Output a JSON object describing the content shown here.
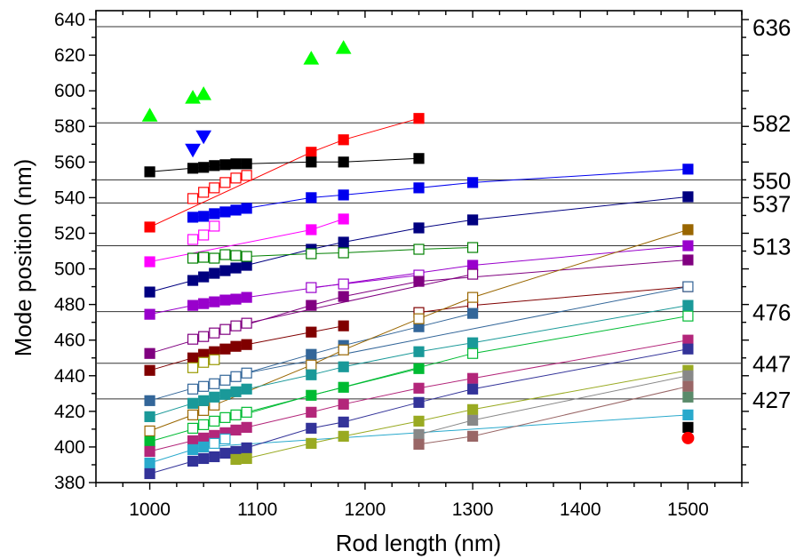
{
  "chart_data": {
    "type": "scatter",
    "title": "",
    "xlabel": "Rod length (nm)",
    "ylabel": "Mode position (nm)",
    "xlim": [
      950,
      1550
    ],
    "ylim": [
      380,
      645
    ],
    "x_ticks": [
      1000,
      1100,
      1200,
      1300,
      1400,
      1500
    ],
    "y_ticks": [
      380,
      400,
      420,
      440,
      460,
      480,
      500,
      520,
      540,
      560,
      580,
      600,
      620,
      640
    ],
    "grid": false,
    "legend": "none",
    "reference_lines": [
      {
        "y": 636,
        "label": "636"
      },
      {
        "y": 582,
        "label": "582"
      },
      {
        "y": 550,
        "label": "550"
      },
      {
        "y": 537,
        "label": "537"
      },
      {
        "y": 513,
        "label": "513"
      },
      {
        "y": 476,
        "label": "476"
      },
      {
        "y": 447,
        "label": "447"
      },
      {
        "y": 427,
        "label": "427"
      }
    ],
    "series": [
      {
        "color": "#ff0000",
        "marker": "square",
        "filled": true,
        "connected": true,
        "points": [
          [
            1000,
            523.5
          ],
          [
            1150,
            565.5
          ],
          [
            1180,
            572.5
          ],
          [
            1250,
            584.5
          ]
        ]
      },
      {
        "color": "#ff0000",
        "marker": "square",
        "filled": false,
        "connected": true,
        "points": [
          [
            1040,
            539.5
          ],
          [
            1050,
            543
          ],
          [
            1060,
            545.5
          ],
          [
            1070,
            548.5
          ],
          [
            1080,
            551
          ],
          [
            1090,
            552.5
          ]
        ]
      },
      {
        "color": "#000000",
        "marker": "square",
        "filled": true,
        "connected": true,
        "points": [
          [
            1000,
            554.5
          ],
          [
            1040,
            556.5
          ],
          [
            1050,
            557
          ],
          [
            1060,
            558
          ],
          [
            1070,
            558.5
          ],
          [
            1080,
            559
          ],
          [
            1090,
            559
          ],
          [
            1150,
            560
          ],
          [
            1180,
            560
          ],
          [
            1250,
            562
          ]
        ]
      },
      {
        "color": "#0000ee",
        "marker": "square",
        "filled": true,
        "connected": true,
        "points": [
          [
            1040,
            529
          ],
          [
            1050,
            529.5
          ],
          [
            1060,
            531
          ],
          [
            1070,
            532
          ],
          [
            1080,
            533
          ],
          [
            1090,
            534
          ],
          [
            1150,
            540
          ],
          [
            1180,
            541.5
          ],
          [
            1250,
            545.5
          ],
          [
            1300,
            548.5
          ],
          [
            1500,
            556
          ]
        ]
      },
      {
        "color": "#ff00ff",
        "marker": "square",
        "filled": true,
        "connected": true,
        "points": [
          [
            1000,
            504
          ],
          [
            1150,
            522
          ],
          [
            1180,
            528
          ]
        ]
      },
      {
        "color": "#ff00ff",
        "marker": "square",
        "filled": false,
        "connected": true,
        "points": [
          [
            1040,
            516.5
          ],
          [
            1050,
            519
          ],
          [
            1060,
            524
          ]
        ]
      },
      {
        "color": "#000080",
        "marker": "square",
        "filled": true,
        "connected": true,
        "points": [
          [
            1000,
            487
          ],
          [
            1040,
            493.5
          ],
          [
            1050,
            495.5
          ],
          [
            1060,
            497.5
          ],
          [
            1070,
            499
          ],
          [
            1080,
            500.5
          ],
          [
            1090,
            502
          ],
          [
            1150,
            511
          ],
          [
            1180,
            515
          ],
          [
            1250,
            523
          ],
          [
            1300,
            527.5
          ],
          [
            1500,
            540.5
          ]
        ]
      },
      {
        "color": "#008000",
        "marker": "square",
        "filled": false,
        "connected": true,
        "points": [
          [
            1040,
            506
          ],
          [
            1050,
            506.5
          ],
          [
            1060,
            506
          ],
          [
            1070,
            508
          ],
          [
            1080,
            507.5
          ],
          [
            1090,
            507
          ],
          [
            1150,
            508.5
          ],
          [
            1180,
            509
          ],
          [
            1250,
            511
          ],
          [
            1300,
            512
          ]
        ]
      },
      {
        "color": "#9900cc",
        "marker": "square",
        "filled": true,
        "connected": true,
        "points": [
          [
            1000,
            474.5
          ],
          [
            1040,
            479.5
          ],
          [
            1050,
            480.5
          ],
          [
            1060,
            481.5
          ],
          [
            1070,
            482.5
          ],
          [
            1080,
            483
          ],
          [
            1090,
            484
          ],
          [
            1300,
            502
          ],
          [
            1500,
            513
          ]
        ]
      },
      {
        "color": "#9900cc",
        "marker": "square",
        "filled": false,
        "connected": true,
        "points": [
          [
            1150,
            489.5
          ],
          [
            1180,
            491.5
          ],
          [
            1250,
            496.5
          ]
        ]
      },
      {
        "color": "#800080",
        "marker": "square",
        "filled": true,
        "connected": true,
        "points": [
          [
            1000,
            452.5
          ],
          [
            1150,
            479.5
          ],
          [
            1180,
            484.5
          ],
          [
            1250,
            493
          ],
          [
            1500,
            505
          ]
        ]
      },
      {
        "color": "#800080",
        "marker": "square",
        "filled": false,
        "connected": true,
        "points": [
          [
            1040,
            460.5
          ],
          [
            1050,
            462
          ],
          [
            1060,
            464
          ],
          [
            1070,
            466
          ],
          [
            1080,
            468
          ],
          [
            1090,
            469.5
          ],
          [
            1300,
            497
          ]
        ]
      },
      {
        "color": "#800000",
        "marker": "square",
        "filled": true,
        "connected": true,
        "points": [
          [
            1000,
            443
          ],
          [
            1040,
            450
          ],
          [
            1050,
            452
          ],
          [
            1060,
            453.5
          ],
          [
            1070,
            455
          ],
          [
            1080,
            456.5
          ],
          [
            1090,
            457.5
          ],
          [
            1150,
            464.5
          ],
          [
            1180,
            468
          ]
        ]
      },
      {
        "color": "#800000",
        "marker": "square",
        "filled": false,
        "connected": true,
        "points": [
          [
            1250,
            475.5
          ],
          [
            1300,
            479.5
          ],
          [
            1500,
            490
          ]
        ]
      },
      {
        "color": "#336699",
        "marker": "square",
        "filled": true,
        "connected": true,
        "points": [
          [
            1000,
            426
          ],
          [
            1150,
            452
          ],
          [
            1180,
            457
          ],
          [
            1250,
            467.5
          ],
          [
            1300,
            475
          ]
        ]
      },
      {
        "color": "#336699",
        "marker": "square",
        "filled": false,
        "connected": true,
        "points": [
          [
            1040,
            432.5
          ],
          [
            1050,
            434
          ],
          [
            1060,
            435.5
          ],
          [
            1070,
            437.5
          ],
          [
            1080,
            439.5
          ],
          [
            1090,
            441.5
          ],
          [
            1500,
            490
          ]
        ]
      },
      {
        "color": "#996600",
        "marker": "square",
        "filled": false,
        "connected": true,
        "points": [
          [
            1000,
            409
          ],
          [
            1040,
            418
          ],
          [
            1050,
            420.5
          ],
          [
            1060,
            423.5
          ],
          [
            1150,
            446
          ],
          [
            1180,
            454.5
          ],
          [
            1250,
            472
          ],
          [
            1300,
            484
          ],
          [
            1500,
            522
          ]
        ]
      },
      {
        "color": "#996600",
        "marker": "square",
        "filled": true,
        "connected": false,
        "points": [
          [
            1500,
            522
          ]
        ]
      },
      {
        "color": "#999900",
        "marker": "square",
        "filled": false,
        "connected": true,
        "points": [
          [
            1040,
            444.5
          ],
          [
            1050,
            447.5
          ],
          [
            1060,
            449
          ]
        ]
      },
      {
        "color": "#1a9999",
        "marker": "square",
        "filled": true,
        "connected": true,
        "points": [
          [
            1000,
            417
          ],
          [
            1040,
            424.5
          ],
          [
            1050,
            426
          ],
          [
            1060,
            428
          ],
          [
            1070,
            429.5
          ],
          [
            1080,
            431
          ],
          [
            1090,
            432.5
          ],
          [
            1150,
            440.5
          ],
          [
            1180,
            445
          ],
          [
            1250,
            453.5
          ],
          [
            1300,
            458.5
          ],
          [
            1500,
            479.5
          ]
        ]
      },
      {
        "color": "#00bb33",
        "marker": "square",
        "filled": true,
        "connected": true,
        "points": [
          [
            1000,
            403
          ],
          [
            1150,
            429
          ],
          [
            1180,
            433.5
          ],
          [
            1250,
            444
          ]
        ]
      },
      {
        "color": "#00bb33",
        "marker": "square",
        "filled": false,
        "connected": true,
        "points": [
          [
            1040,
            410.5
          ],
          [
            1050,
            412.5
          ],
          [
            1060,
            414.5
          ],
          [
            1070,
            416.5
          ],
          [
            1080,
            418
          ],
          [
            1090,
            419.5
          ],
          [
            1300,
            452.5
          ],
          [
            1500,
            473.5
          ]
        ]
      },
      {
        "color": "#b3267a",
        "marker": "square",
        "filled": true,
        "connected": true,
        "points": [
          [
            1000,
            397.5
          ],
          [
            1040,
            403.5
          ],
          [
            1050,
            405
          ],
          [
            1060,
            406.5
          ],
          [
            1070,
            408
          ],
          [
            1080,
            409.5
          ],
          [
            1090,
            411
          ],
          [
            1150,
            419.5
          ],
          [
            1180,
            424
          ],
          [
            1250,
            433
          ],
          [
            1300,
            438.5
          ],
          [
            1500,
            460
          ]
        ]
      },
      {
        "color": "#29a9cc",
        "marker": "square",
        "filled": true,
        "connected": true,
        "points": [
          [
            1000,
            391
          ],
          [
            1040,
            398.5
          ],
          [
            1050,
            400
          ],
          [
            1500,
            418
          ]
        ]
      },
      {
        "color": "#29a9cc",
        "marker": "square",
        "filled": false,
        "connected": true,
        "points": [
          [
            1060,
            402
          ],
          [
            1070,
            404.5
          ]
        ]
      },
      {
        "color": "#333399",
        "marker": "square",
        "filled": true,
        "connected": true,
        "points": [
          [
            1000,
            385
          ],
          [
            1040,
            392
          ],
          [
            1050,
            393.5
          ],
          [
            1060,
            394.5
          ],
          [
            1070,
            396.5
          ],
          [
            1080,
            397.5
          ],
          [
            1090,
            399.5
          ],
          [
            1150,
            410.5
          ],
          [
            1180,
            414
          ],
          [
            1250,
            425
          ],
          [
            1300,
            432.5
          ],
          [
            1500,
            455
          ]
        ]
      },
      {
        "color": "#99aa22",
        "marker": "square",
        "filled": true,
        "connected": true,
        "points": [
          [
            1080,
            393
          ],
          [
            1090,
            393.5
          ],
          [
            1150,
            402
          ],
          [
            1180,
            406
          ],
          [
            1250,
            414.5
          ],
          [
            1300,
            421
          ],
          [
            1500,
            443
          ]
        ]
      },
      {
        "color": "#888888",
        "marker": "square",
        "filled": true,
        "connected": true,
        "points": [
          [
            1250,
            407
          ],
          [
            1300,
            415
          ],
          [
            1500,
            440
          ]
        ]
      },
      {
        "color": "#996666",
        "marker": "square",
        "filled": true,
        "connected": true,
        "points": [
          [
            1250,
            401.5
          ],
          [
            1300,
            406
          ],
          [
            1500,
            434
          ]
        ]
      },
      {
        "color": "#5a8a6a",
        "marker": "square",
        "filled": true,
        "connected": false,
        "points": [
          [
            1500,
            428
          ]
        ]
      },
      {
        "color": "#000000",
        "marker": "square",
        "filled": true,
        "connected": false,
        "points": [
          [
            1500,
            411
          ]
        ]
      },
      {
        "color": "#ff0000",
        "marker": "circle",
        "filled": true,
        "connected": false,
        "points": [
          [
            1500,
            405
          ]
        ]
      },
      {
        "color": "#00ff00",
        "marker": "triangle-up",
        "filled": true,
        "connected": false,
        "points": [
          [
            1000,
            586
          ],
          [
            1040,
            596
          ],
          [
            1050,
            598
          ],
          [
            1150,
            618
          ],
          [
            1180,
            624
          ]
        ]
      },
      {
        "color": "#0000ff",
        "marker": "triangle-down",
        "filled": true,
        "connected": false,
        "points": [
          [
            1040,
            567
          ],
          [
            1050,
            574.5
          ]
        ]
      }
    ]
  }
}
